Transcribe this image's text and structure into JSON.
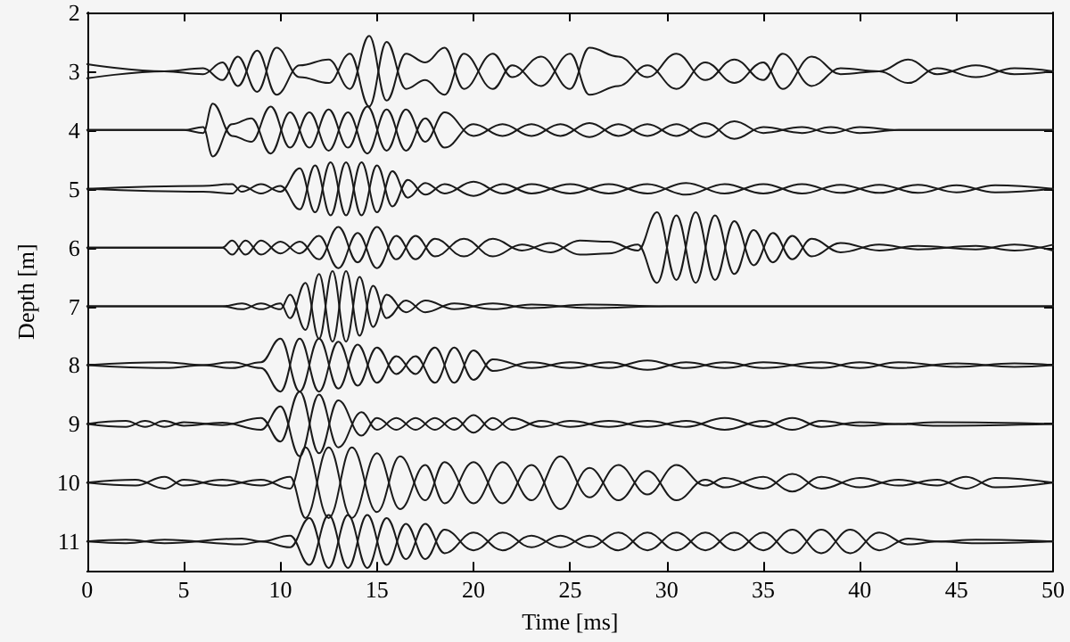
{
  "chart_data": {
    "type": "line",
    "xlabel": "Time [ms]",
    "ylabel": "Depth [m]",
    "xlim": [
      0,
      50
    ],
    "xticks": [
      0,
      5,
      10,
      15,
      20,
      25,
      30,
      35,
      40,
      45,
      50
    ],
    "ylim": [
      11.5,
      2
    ],
    "yticks": [
      2,
      3,
      4,
      5,
      6,
      7,
      8,
      9,
      10,
      11
    ],
    "grid": false,
    "marker": "none",
    "line_style": "solid",
    "series": [
      {
        "color": "#1a1a1a",
        "x": [
          0,
          4,
          6,
          7,
          7.8,
          8.8,
          9.8,
          11,
          12.5,
          13.6,
          14.6,
          15.5,
          16.5,
          17.5,
          18.5,
          19.5,
          21,
          22,
          23.5,
          25,
          26,
          27.5,
          29,
          30.5,
          32,
          33.5,
          35,
          36,
          37.5,
          39,
          41,
          42.5,
          44,
          46,
          48,
          50
        ],
        "values": [
          2.88,
          3,
          3.05,
          2.85,
          3.25,
          2.65,
          3.4,
          2.9,
          2.8,
          3.3,
          2.4,
          3.5,
          2.7,
          2.85,
          2.6,
          3.3,
          2.7,
          3.1,
          2.75,
          3.3,
          2.6,
          2.75,
          3.1,
          2.7,
          3.15,
          2.8,
          3.15,
          2.7,
          3.25,
          2.95,
          3,
          2.8,
          3.05,
          2.9,
          3.05,
          3
        ]
      },
      {
        "color": "#1a1a1a",
        "x": [
          0,
          4,
          6,
          7,
          7.8,
          8.8,
          9.8,
          11,
          12.5,
          13.6,
          14.6,
          15.5,
          16.5,
          17.5,
          18.5,
          19.5,
          21,
          22,
          23.5,
          25,
          26,
          27.5,
          29,
          30.5,
          32,
          33.5,
          35,
          36,
          37.5,
          39,
          41,
          42.5,
          44,
          46,
          48,
          50
        ],
        "values": [
          3.12,
          3,
          2.95,
          3.15,
          2.75,
          3.35,
          2.6,
          3.1,
          3.2,
          2.7,
          3.6,
          2.5,
          3.3,
          3.15,
          3.4,
          2.7,
          3.3,
          2.9,
          3.25,
          2.7,
          3.4,
          3.25,
          2.9,
          3.3,
          2.85,
          3.2,
          2.85,
          3.3,
          2.75,
          3.05,
          3,
          3.2,
          2.95,
          3.1,
          2.95,
          3
        ]
      },
      {
        "color": "#1a1a1a",
        "x": [
          0,
          5,
          6,
          6.5,
          7.5,
          8.5,
          9.5,
          10.5,
          11.5,
          12.5,
          13.5,
          14.5,
          15.5,
          16.5,
          17.5,
          18.5,
          20,
          21.5,
          23,
          24.5,
          26,
          27.5,
          29,
          30.5,
          32,
          33.5,
          35,
          37,
          38.5,
          40,
          42,
          50
        ],
        "values": [
          4,
          4,
          4.05,
          3.55,
          4.1,
          4.2,
          3.6,
          4.3,
          3.7,
          4.35,
          3.7,
          4.4,
          3.65,
          4.35,
          3.8,
          4.3,
          3.9,
          4.1,
          3.9,
          4.1,
          3.88,
          4.1,
          3.9,
          4.1,
          3.88,
          4.15,
          3.95,
          4.05,
          3.95,
          4.05,
          4,
          4
        ]
      },
      {
        "color": "#1a1a1a",
        "x": [
          0,
          5,
          6,
          6.5,
          7.5,
          8.5,
          9.5,
          10.5,
          11.5,
          12.5,
          13.5,
          14.5,
          15.5,
          16.5,
          17.5,
          18.5,
          20,
          21.5,
          23,
          24.5,
          26,
          27.5,
          29,
          30.5,
          32,
          33.5,
          35,
          37,
          38.5,
          40,
          42,
          50
        ],
        "values": [
          4,
          4,
          3.95,
          4.45,
          3.9,
          3.8,
          4.4,
          3.7,
          4.3,
          3.65,
          4.3,
          3.6,
          4.35,
          3.65,
          4.2,
          3.7,
          4.1,
          3.9,
          4.1,
          3.9,
          4.12,
          3.9,
          4.1,
          3.9,
          4.12,
          3.85,
          4.05,
          3.95,
          4.05,
          3.95,
          4,
          4
        ]
      },
      {
        "color": "#1a1a1a",
        "x": [
          0,
          6,
          7.5,
          8,
          9,
          10,
          11,
          11.8,
          12.6,
          13.4,
          14.2,
          15,
          15.8,
          16.6,
          17.5,
          18.5,
          20,
          21.5,
          23,
          25,
          27,
          29,
          31,
          33,
          35,
          37,
          39,
          41,
          43,
          45,
          47,
          50
        ],
        "values": [
          5,
          4.95,
          4.92,
          5.05,
          4.92,
          5.05,
          4.65,
          5.4,
          4.55,
          5.45,
          4.55,
          5.4,
          4.7,
          5.15,
          4.9,
          5.08,
          4.88,
          5.08,
          4.92,
          5.08,
          4.92,
          5.08,
          4.9,
          5.08,
          4.92,
          5.08,
          4.93,
          5.07,
          4.93,
          5.06,
          4.94,
          5
        ]
      },
      {
        "color": "#1a1a1a",
        "x": [
          0,
          6,
          7.5,
          8,
          9,
          10,
          11,
          11.8,
          12.6,
          13.4,
          14.2,
          15,
          15.8,
          16.6,
          17.5,
          18.5,
          20,
          21.5,
          23,
          25,
          27,
          29,
          31,
          33,
          35,
          37,
          39,
          41,
          43,
          45,
          47,
          50
        ],
        "values": [
          5,
          5.05,
          5.08,
          4.95,
          5.08,
          4.95,
          5.35,
          4.6,
          5.45,
          4.55,
          5.45,
          4.6,
          5.3,
          4.85,
          5.1,
          4.92,
          5.12,
          4.92,
          5.08,
          4.92,
          5.08,
          4.92,
          5.1,
          4.92,
          5.08,
          4.92,
          5.07,
          4.93,
          5.07,
          4.94,
          5.06,
          5
        ]
      },
      {
        "color": "#1a1a1a",
        "x": [
          0,
          7,
          7.5,
          8.2,
          9,
          10,
          11,
          12,
          13,
          14,
          15,
          16,
          17,
          18,
          19.5,
          21,
          22.5,
          24,
          25.5,
          27,
          28.5,
          29.5,
          30.5,
          31.5,
          32.5,
          33.5,
          34.5,
          35.5,
          36.5,
          37.5,
          39,
          41,
          43,
          46,
          48,
          50
        ],
        "values": [
          6,
          6,
          5.88,
          6.12,
          5.88,
          6.1,
          5.9,
          6.2,
          5.65,
          6.25,
          5.65,
          6.2,
          5.8,
          6.15,
          5.85,
          6.15,
          5.95,
          6.08,
          5.88,
          5.9,
          6.05,
          5.4,
          6.55,
          5.4,
          6.55,
          5.55,
          6.3,
          5.75,
          6.2,
          5.85,
          6.08,
          5.95,
          6.03,
          5.97,
          6.05,
          5.95
        ]
      },
      {
        "color": "#1a1a1a",
        "x": [
          0,
          7,
          7.5,
          8.2,
          9,
          10,
          11,
          12,
          13,
          14,
          15,
          16,
          17,
          18,
          19.5,
          21,
          22.5,
          24,
          25.5,
          27,
          28.5,
          29.5,
          30.5,
          31.5,
          32.5,
          33.5,
          34.5,
          35.5,
          36.5,
          37.5,
          39,
          41,
          43,
          46,
          48,
          50
        ],
        "values": [
          6,
          6,
          6.12,
          5.88,
          6.12,
          5.9,
          6.1,
          5.8,
          6.35,
          5.75,
          6.35,
          5.8,
          6.2,
          5.85,
          6.15,
          5.85,
          6.05,
          5.92,
          6.12,
          6.1,
          5.95,
          6.6,
          5.45,
          6.6,
          5.45,
          6.45,
          5.7,
          6.25,
          5.8,
          6.15,
          5.92,
          6.05,
          5.97,
          6.03,
          5.95,
          6.05
        ]
      },
      {
        "color": "#1a1a1a",
        "x": [
          0,
          7,
          8,
          9,
          10,
          10.5,
          11.3,
          12,
          12.7,
          13.4,
          14.1,
          14.8,
          15.5,
          16.5,
          17.5,
          19,
          21,
          23,
          26,
          30,
          50
        ],
        "values": [
          7,
          7,
          6.95,
          7.05,
          6.95,
          7.2,
          6.6,
          7.55,
          6.4,
          7.6,
          6.5,
          7.35,
          6.8,
          7.1,
          6.9,
          7.05,
          6.95,
          7.03,
          6.97,
          7,
          7
        ]
      },
      {
        "color": "#1a1a1a",
        "x": [
          0,
          7,
          8,
          9,
          10,
          10.5,
          11.3,
          12,
          12.7,
          13.4,
          14.1,
          14.8,
          15.5,
          16.5,
          17.5,
          19,
          21,
          23,
          26,
          30,
          50
        ],
        "values": [
          7,
          7,
          7.05,
          6.95,
          7.05,
          6.8,
          7.4,
          6.45,
          7.6,
          6.4,
          7.5,
          6.65,
          7.2,
          6.9,
          7.1,
          6.95,
          7.05,
          6.97,
          7.03,
          7,
          7
        ]
      },
      {
        "color": "#1a1a1a",
        "x": [
          0,
          4,
          6,
          7.5,
          9,
          10,
          11,
          12,
          13,
          14,
          15,
          16,
          17,
          18,
          19,
          20,
          21,
          23,
          25,
          27,
          29,
          31,
          33,
          35,
          38,
          40,
          42,
          45,
          48,
          50
        ],
        "values": [
          8,
          7.95,
          8,
          8.05,
          7.95,
          7.55,
          8.45,
          7.55,
          8.4,
          7.65,
          8.3,
          7.85,
          8.15,
          7.7,
          8.3,
          7.75,
          8.1,
          7.95,
          8.05,
          7.95,
          8.08,
          7.95,
          8.05,
          7.95,
          8.05,
          7.95,
          8.05,
          7.97,
          8.03,
          8
        ]
      },
      {
        "color": "#1a1a1a",
        "x": [
          0,
          4,
          6,
          7.5,
          9,
          10,
          11,
          12,
          13,
          14,
          15,
          16,
          17,
          18,
          19,
          20,
          21,
          23,
          25,
          27,
          29,
          31,
          33,
          35,
          38,
          40,
          42,
          45,
          48,
          50
        ],
        "values": [
          8,
          8.05,
          8,
          7.95,
          8.05,
          8.45,
          7.55,
          8.45,
          7.6,
          8.35,
          7.7,
          8.15,
          7.85,
          8.3,
          7.7,
          8.25,
          7.9,
          8.05,
          7.95,
          8.05,
          7.92,
          8.05,
          7.95,
          8.05,
          7.95,
          8.05,
          7.95,
          8.03,
          7.97,
          8
        ]
      },
      {
        "color": "#1a1a1a",
        "x": [
          0,
          2,
          3,
          4,
          5,
          7,
          9,
          10,
          11,
          12,
          13,
          14.2,
          15,
          16,
          17,
          18,
          19,
          20,
          21,
          22,
          23.5,
          25,
          27,
          29,
          31,
          33,
          35,
          36.5,
          38,
          40,
          42,
          44,
          50
        ],
        "values": [
          9,
          8.95,
          9.05,
          8.95,
          9.03,
          8.98,
          9.1,
          8.7,
          9.55,
          8.5,
          9.4,
          8.8,
          9.1,
          8.9,
          9.1,
          8.9,
          9.1,
          8.85,
          9.1,
          8.9,
          9.05,
          8.95,
          9.05,
          8.95,
          9.05,
          8.9,
          9.05,
          8.9,
          9.05,
          8.97,
          9,
          8.97,
          9
        ]
      },
      {
        "color": "#1a1a1a",
        "x": [
          0,
          2,
          3,
          4,
          5,
          7,
          9,
          10,
          11,
          12,
          13,
          14.2,
          15,
          16,
          17,
          18,
          19,
          20,
          21,
          22,
          23.5,
          25,
          27,
          29,
          31,
          33,
          35,
          36.5,
          38,
          40,
          42,
          44,
          50
        ],
        "values": [
          9,
          9.05,
          8.95,
          9.05,
          8.97,
          9.02,
          8.9,
          9.3,
          8.45,
          9.5,
          8.6,
          9.2,
          8.9,
          9.1,
          8.9,
          9.1,
          8.9,
          9.15,
          8.9,
          9.1,
          8.95,
          9.05,
          8.95,
          9.05,
          8.95,
          9.1,
          8.95,
          9.1,
          8.95,
          9.03,
          9,
          9.03,
          9
        ]
      },
      {
        "color": "#1a1a1a",
        "x": [
          0,
          2.5,
          4,
          5,
          7,
          9,
          10.5,
          11.3,
          12.5,
          13.7,
          15,
          16.2,
          17.5,
          18.5,
          20,
          21.5,
          23,
          24.5,
          26,
          27.5,
          29,
          30.5,
          32,
          33,
          35,
          36.5,
          38,
          40,
          42,
          44,
          45.5,
          47,
          50
        ],
        "values": [
          10,
          9.95,
          10.1,
          9.95,
          10.05,
          9.95,
          10.1,
          9.4,
          10.6,
          9.4,
          10.5,
          9.55,
          10.3,
          9.65,
          10.35,
          9.65,
          10.3,
          9.55,
          10.25,
          9.7,
          10.2,
          9.7,
          10.05,
          9.92,
          10.1,
          9.85,
          10.1,
          9.92,
          10.05,
          9.95,
          10.1,
          9.92,
          10
        ]
      },
      {
        "color": "#1a1a1a",
        "x": [
          0,
          2.5,
          4,
          5,
          7,
          9,
          10.5,
          11.3,
          12.5,
          13.7,
          15,
          16.2,
          17.5,
          18.5,
          20,
          21.5,
          23,
          24.5,
          26,
          27.5,
          29,
          30.5,
          32,
          33,
          35,
          36.5,
          38,
          40,
          42,
          44,
          45.5,
          47,
          50
        ],
        "values": [
          10,
          10.05,
          9.9,
          10.05,
          9.95,
          10.05,
          9.9,
          10.6,
          9.4,
          10.6,
          9.5,
          10.45,
          9.7,
          10.35,
          9.65,
          10.35,
          9.7,
          10.45,
          9.75,
          10.3,
          9.8,
          10.3,
          9.95,
          10.08,
          9.9,
          10.15,
          9.9,
          10.08,
          9.95,
          10.05,
          9.9,
          10.08,
          10
        ]
      },
      {
        "color": "#1a1a1a",
        "x": [
          0,
          2,
          4,
          8,
          9,
          10.5,
          11.5,
          12.5,
          13.5,
          14.5,
          15.5,
          16.5,
          17.5,
          18.5,
          20,
          21.5,
          23,
          24.5,
          26,
          27.5,
          29,
          30.5,
          32,
          33.5,
          35,
          36.5,
          38,
          39.5,
          41,
          42.5,
          44,
          46,
          50
        ],
        "values": [
          11,
          10.97,
          11.03,
          10.95,
          11,
          10.9,
          11.4,
          10.55,
          11.45,
          10.55,
          11.4,
          10.7,
          11.3,
          10.8,
          11.15,
          10.85,
          11.1,
          10.9,
          11.1,
          10.85,
          11.15,
          10.85,
          11.15,
          10.85,
          11.15,
          10.8,
          11.2,
          10.8,
          11.15,
          10.95,
          11,
          10.97,
          11
        ]
      },
      {
        "color": "#1a1a1a",
        "x": [
          0,
          2,
          4,
          8,
          9,
          10.5,
          11.5,
          12.5,
          13.5,
          14.5,
          15.5,
          16.5,
          17.5,
          18.5,
          20,
          21.5,
          23,
          24.5,
          26,
          27.5,
          29,
          30.5,
          32,
          33.5,
          35,
          36.5,
          38,
          39.5,
          41,
          42.5,
          44,
          46,
          50
        ],
        "values": [
          11,
          11.03,
          10.97,
          11.05,
          11,
          11.1,
          10.6,
          11.45,
          10.55,
          11.45,
          10.6,
          11.3,
          10.7,
          11.2,
          10.85,
          11.15,
          10.9,
          11.1,
          10.9,
          11.15,
          10.85,
          11.15,
          10.85,
          11.15,
          10.85,
          11.2,
          10.8,
          11.2,
          10.85,
          11.05,
          11,
          11.03,
          11
        ]
      }
    ]
  }
}
